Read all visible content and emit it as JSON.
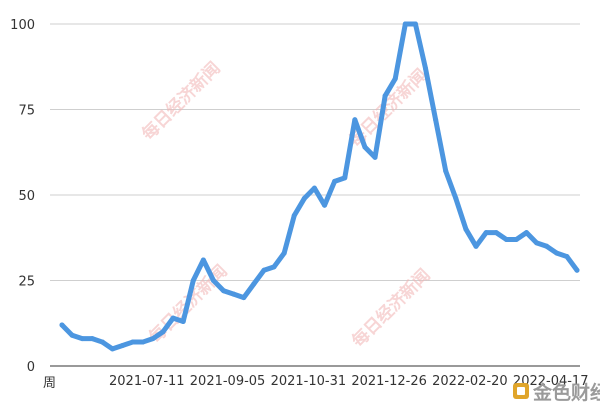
{
  "chart_data": {
    "type": "line",
    "title": "",
    "xlabel": "周",
    "ylabel": "",
    "ylim": [
      0,
      100
    ],
    "yticks": [
      0,
      25,
      50,
      75,
      100
    ],
    "x_tick_labels": [
      {
        "index": 8,
        "label": "2021-07-11"
      },
      {
        "index": 16,
        "label": "2021-09-05"
      },
      {
        "index": 24,
        "label": "2021-10-31"
      },
      {
        "index": 32,
        "label": "2021-12-26"
      },
      {
        "index": 40,
        "label": "2022-02-20"
      },
      {
        "index": 48,
        "label": "2022-04-17"
      }
    ],
    "grid": "horizontal",
    "legend": "none",
    "series": [
      {
        "color": "#4c96e0",
        "values": [
          12,
          9,
          8,
          8,
          7,
          5,
          6,
          7,
          7,
          8,
          10,
          14,
          13,
          25,
          31,
          25,
          22,
          21,
          20,
          24,
          28,
          29,
          33,
          44,
          49,
          52,
          47,
          54,
          55,
          72,
          64,
          61,
          79,
          84,
          100,
          100,
          87,
          72,
          57,
          49,
          40,
          35,
          39,
          39,
          37,
          37,
          39,
          36,
          35,
          33,
          32,
          28
        ]
      }
    ]
  },
  "watermark": {
    "text": "每日经济新闻"
  },
  "logo": {
    "text": "金色财经",
    "color": "#e0a52a"
  }
}
